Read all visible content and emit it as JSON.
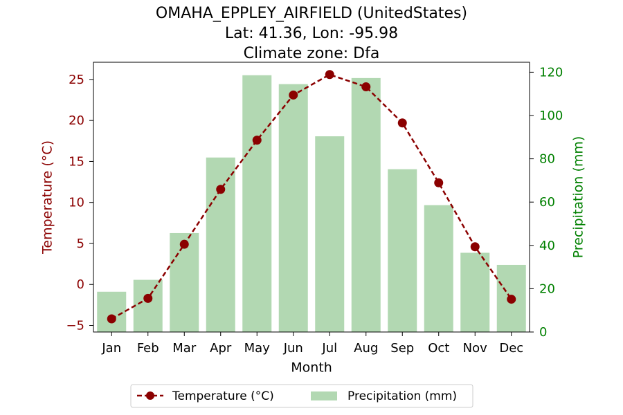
{
  "chart_data": {
    "type": "bar+line",
    "title_lines": [
      "OMAHA_EPPLEY_AIRFIELD (UnitedStates)",
      "Lat: 41.36, Lon: -95.98",
      "Climate zone: Dfa"
    ],
    "xlabel": "Month",
    "y_left_label": "Temperature (°C)",
    "y_right_label": "Precipitation (mm)",
    "categories": [
      "Jan",
      "Feb",
      "Mar",
      "Apr",
      "May",
      "Jun",
      "Jul",
      "Aug",
      "Sep",
      "Oct",
      "Nov",
      "Dec"
    ],
    "series": [
      {
        "name": "Temperature (°C)",
        "type": "line",
        "axis": "left",
        "color": "#8b0000",
        "values": [
          -4.2,
          -1.7,
          4.9,
          11.6,
          17.6,
          23.1,
          25.6,
          24.1,
          19.7,
          12.4,
          4.6,
          -1.8
        ]
      },
      {
        "name": "Precipitation (mm)",
        "type": "bar",
        "axis": "right",
        "color": "#b2d8b2",
        "values": [
          18.6,
          24.1,
          45.7,
          80.6,
          118.6,
          114.5,
          90.4,
          117.3,
          75.2,
          58.6,
          36.6,
          31.0
        ]
      }
    ],
    "y_left_lim": [
      -5.8,
      27.1
    ],
    "y_left_ticks": [
      -5,
      0,
      5,
      10,
      15,
      20,
      25
    ],
    "y_right_lim": [
      0,
      124.6
    ],
    "y_right_ticks": [
      0,
      20,
      40,
      60,
      80,
      100,
      120
    ],
    "left_axis_color": "#8b0000",
    "right_axis_color": "#008000",
    "grid": false,
    "legend_position": "bottom-center"
  }
}
